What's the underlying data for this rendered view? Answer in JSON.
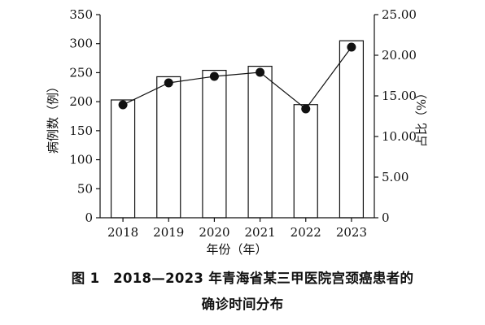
{
  "chart_data": {
    "type": "bar",
    "categories": [
      "2018",
      "2019",
      "2020",
      "2021",
      "2022",
      "2023"
    ],
    "series": [
      {
        "type": "bar",
        "axis": "left",
        "values": [
          203,
          243,
          254,
          261,
          195,
          305
        ]
      },
      {
        "type": "line",
        "axis": "right",
        "values": [
          13.9,
          16.6,
          17.4,
          17.9,
          13.4,
          21.0
        ]
      }
    ],
    "xlabel": "年份（年）",
    "ylabel_left": "病例数（例）",
    "ylabel_right": "占比（%）",
    "ylim_left": [
      0,
      350
    ],
    "ylim_right": [
      0,
      25
    ],
    "yticks_left": [
      "0",
      "50",
      "100",
      "150",
      "200",
      "250",
      "300",
      "350"
    ],
    "yticks_right": [
      "0",
      "5.00",
      "10.00",
      "15.00",
      "20.00",
      "25.00"
    ],
    "grid": false,
    "legend": "none"
  },
  "caption": {
    "line1": "图 1　2018—2023 年青海省某三甲医院宫颈癌患者的",
    "line2": "确诊时间分布"
  }
}
